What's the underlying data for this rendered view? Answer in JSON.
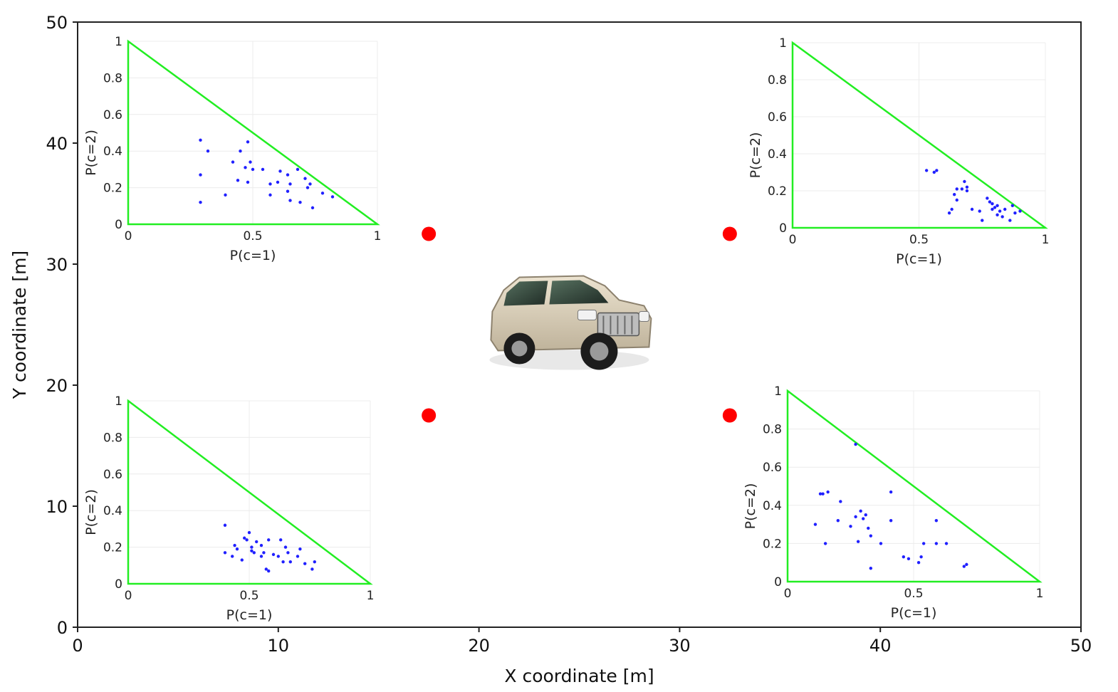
{
  "chart_data": {
    "type": "scatter",
    "title": "",
    "xlabel": "X coordinate [m]",
    "ylabel": "Y coordinate [m]",
    "xlim": [
      0,
      50
    ],
    "ylim": [
      0,
      50
    ],
    "xticks": [
      "0",
      "10",
      "20",
      "30",
      "40",
      "50"
    ],
    "yticks": [
      "0",
      "10",
      "20",
      "30",
      "40",
      "50"
    ],
    "grid": false,
    "sensor_color": "#ff0000",
    "sensors": [
      {
        "x": 17.5,
        "y": 32.5
      },
      {
        "x": 32.5,
        "y": 32.5
      },
      {
        "x": 17.5,
        "y": 17.5
      },
      {
        "x": 32.5,
        "y": 17.5
      }
    ],
    "target_icon": "suv-car-photo",
    "target_position": {
      "x": 24.5,
      "y": 25.5
    },
    "insets": [
      {
        "location": "top-left",
        "type": "scatter",
        "xlabel": "P(c=1)",
        "ylabel": "P(c=2)",
        "xticks": [
          "0",
          "0.5",
          "1"
        ],
        "yticks": [
          "0",
          "0.2",
          "0.4",
          "0.6",
          "0.8",
          "1"
        ],
        "simplex_color": "#22ee22",
        "point_color": "#2020ff",
        "points": [
          [
            0.29,
            0.46
          ],
          [
            0.32,
            0.4
          ],
          [
            0.29,
            0.27
          ],
          [
            0.29,
            0.12
          ],
          [
            0.39,
            0.16
          ],
          [
            0.42,
            0.34
          ],
          [
            0.44,
            0.24
          ],
          [
            0.45,
            0.4
          ],
          [
            0.47,
            0.31
          ],
          [
            0.48,
            0.23
          ],
          [
            0.48,
            0.45
          ],
          [
            0.49,
            0.34
          ],
          [
            0.5,
            0.3
          ],
          [
            0.54,
            0.3
          ],
          [
            0.57,
            0.22
          ],
          [
            0.57,
            0.16
          ],
          [
            0.6,
            0.23
          ],
          [
            0.61,
            0.29
          ],
          [
            0.64,
            0.27
          ],
          [
            0.64,
            0.18
          ],
          [
            0.65,
            0.22
          ],
          [
            0.65,
            0.13
          ],
          [
            0.68,
            0.3
          ],
          [
            0.69,
            0.12
          ],
          [
            0.71,
            0.25
          ],
          [
            0.72,
            0.2
          ],
          [
            0.73,
            0.22
          ],
          [
            0.74,
            0.09
          ],
          [
            0.78,
            0.17
          ],
          [
            0.82,
            0.15
          ]
        ]
      },
      {
        "location": "top-right",
        "type": "scatter",
        "xlabel": "P(c=1)",
        "ylabel": "P(c=2)",
        "xticks": [
          "0",
          "0.5",
          "1"
        ],
        "yticks": [
          "0",
          "0.2",
          "0.4",
          "0.6",
          "0.8",
          "1"
        ],
        "simplex_color": "#22ee22",
        "point_color": "#2020ff",
        "points": [
          [
            0.53,
            0.31
          ],
          [
            0.56,
            0.3
          ],
          [
            0.57,
            0.31
          ],
          [
            0.62,
            0.08
          ],
          [
            0.63,
            0.1
          ],
          [
            0.64,
            0.18
          ],
          [
            0.65,
            0.15
          ],
          [
            0.65,
            0.21
          ],
          [
            0.67,
            0.21
          ],
          [
            0.68,
            0.25
          ],
          [
            0.69,
            0.22
          ],
          [
            0.69,
            0.2
          ],
          [
            0.71,
            0.1
          ],
          [
            0.74,
            0.09
          ],
          [
            0.75,
            0.04
          ],
          [
            0.77,
            0.16
          ],
          [
            0.78,
            0.14
          ],
          [
            0.79,
            0.13
          ],
          [
            0.79,
            0.1
          ],
          [
            0.8,
            0.11
          ],
          [
            0.81,
            0.07
          ],
          [
            0.81,
            0.12
          ],
          [
            0.82,
            0.09
          ],
          [
            0.83,
            0.06
          ],
          [
            0.84,
            0.1
          ],
          [
            0.86,
            0.04
          ],
          [
            0.87,
            0.12
          ],
          [
            0.88,
            0.08
          ],
          [
            0.9,
            0.09
          ]
        ]
      },
      {
        "location": "bottom-left",
        "type": "scatter",
        "xlabel": "P(c=1)",
        "ylabel": "P(c=2)",
        "xticks": [
          "0",
          "0.5",
          "1"
        ],
        "yticks": [
          "0",
          "0.2",
          "0.4",
          "0.6",
          "0.8",
          "1"
        ],
        "simplex_color": "#22ee22",
        "point_color": "#2020ff",
        "points": [
          [
            0.4,
            0.32
          ],
          [
            0.4,
            0.17
          ],
          [
            0.43,
            0.15
          ],
          [
            0.44,
            0.21
          ],
          [
            0.45,
            0.19
          ],
          [
            0.47,
            0.13
          ],
          [
            0.48,
            0.25
          ],
          [
            0.49,
            0.24
          ],
          [
            0.5,
            0.28
          ],
          [
            0.51,
            0.2
          ],
          [
            0.51,
            0.18
          ],
          [
            0.52,
            0.17
          ],
          [
            0.53,
            0.23
          ],
          [
            0.55,
            0.15
          ],
          [
            0.55,
            0.21
          ],
          [
            0.56,
            0.17
          ],
          [
            0.57,
            0.08
          ],
          [
            0.58,
            0.07
          ],
          [
            0.58,
            0.24
          ],
          [
            0.6,
            0.16
          ],
          [
            0.62,
            0.15
          ],
          [
            0.63,
            0.24
          ],
          [
            0.64,
            0.12
          ],
          [
            0.65,
            0.2
          ],
          [
            0.66,
            0.17
          ],
          [
            0.67,
            0.12
          ],
          [
            0.7,
            0.15
          ],
          [
            0.71,
            0.19
          ],
          [
            0.73,
            0.11
          ],
          [
            0.76,
            0.08
          ],
          [
            0.77,
            0.12
          ]
        ]
      },
      {
        "location": "bottom-right",
        "type": "scatter",
        "xlabel": "P(c=1)",
        "ylabel": "P(c=2)",
        "xticks": [
          "0",
          "0.5",
          "1"
        ],
        "yticks": [
          "0",
          "0.2",
          "0.4",
          "0.6",
          "0.8",
          "1"
        ],
        "simplex_color": "#22ee22",
        "point_color": "#2020ff",
        "points": [
          [
            0.11,
            0.3
          ],
          [
            0.13,
            0.46
          ],
          [
            0.14,
            0.46
          ],
          [
            0.15,
            0.2
          ],
          [
            0.16,
            0.47
          ],
          [
            0.2,
            0.32
          ],
          [
            0.21,
            0.42
          ],
          [
            0.25,
            0.29
          ],
          [
            0.27,
            0.34
          ],
          [
            0.27,
            0.72
          ],
          [
            0.28,
            0.21
          ],
          [
            0.29,
            0.37
          ],
          [
            0.3,
            0.33
          ],
          [
            0.31,
            0.35
          ],
          [
            0.32,
            0.28
          ],
          [
            0.33,
            0.24
          ],
          [
            0.33,
            0.07
          ],
          [
            0.37,
            0.2
          ],
          [
            0.41,
            0.32
          ],
          [
            0.41,
            0.47
          ],
          [
            0.46,
            0.13
          ],
          [
            0.48,
            0.12
          ],
          [
            0.52,
            0.1
          ],
          [
            0.53,
            0.13
          ],
          [
            0.54,
            0.2
          ],
          [
            0.59,
            0.32
          ],
          [
            0.59,
            0.2
          ],
          [
            0.63,
            0.2
          ],
          [
            0.7,
            0.08
          ],
          [
            0.71,
            0.09
          ]
        ]
      }
    ]
  }
}
